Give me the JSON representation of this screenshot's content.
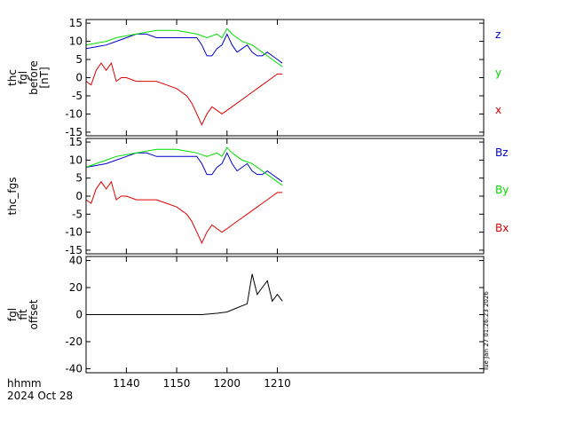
{
  "colors": {
    "x": "#e00000",
    "y": "#00dd00",
    "z": "#0000cc",
    "offset": "#000000",
    "axis": "#000000"
  },
  "footer": {
    "xlabel_line1": "hhmm",
    "xlabel_line2": "2024 Oct 28",
    "timestamp": "Tue Jan 27 01:26:23 2026"
  },
  "chart_data": [
    {
      "type": "line",
      "title": "",
      "ylabel": [
        "thc",
        "fgl",
        "before",
        "[nT]"
      ],
      "ylim": [
        -16,
        16
      ],
      "yticks": [
        15,
        10,
        5,
        0,
        -5,
        -10,
        -15
      ],
      "x_domain_min": [
        1132,
        1211
      ],
      "xticks": [
        "1140",
        "1150",
        "1200",
        "1210"
      ],
      "xtick_positions_min": [
        1140,
        1150,
        1160,
        1170
      ],
      "series": [
        {
          "name": "z",
          "color_key": "z",
          "legend_label": "z",
          "x_min": [
            1132,
            1134,
            1136,
            1138,
            1140,
            1142,
            1144,
            1146,
            1148,
            1150,
            1152,
            1154,
            1155,
            1156,
            1157,
            1158,
            1159,
            1160,
            1161,
            1162,
            1163,
            1164,
            1165,
            1166,
            1167,
            1168,
            1169,
            1170,
            1171
          ],
          "values": [
            8,
            8.5,
            9,
            10,
            11,
            12,
            12,
            11,
            11,
            11,
            11,
            11,
            9,
            6,
            6,
            8,
            9,
            12,
            9,
            7,
            8,
            9,
            7,
            6,
            6,
            7,
            6,
            5,
            4
          ]
        },
        {
          "name": "y",
          "color_key": "y",
          "legend_label": "y",
          "x_min": [
            1132,
            1134,
            1136,
            1138,
            1140,
            1142,
            1144,
            1146,
            1148,
            1150,
            1152,
            1154,
            1156,
            1158,
            1159,
            1160,
            1161,
            1162,
            1163,
            1164,
            1165,
            1166,
            1167,
            1168,
            1169,
            1170,
            1171
          ],
          "values": [
            9,
            9.5,
            10,
            11,
            11.5,
            12,
            12.5,
            13,
            13,
            13,
            12.5,
            12,
            11,
            12,
            11,
            13.5,
            12,
            11,
            10,
            9.5,
            9,
            8,
            7,
            6,
            5,
            4,
            3
          ]
        },
        {
          "name": "x",
          "color_key": "x",
          "legend_label": "x",
          "x_min": [
            1132,
            1133,
            1134,
            1135,
            1136,
            1137,
            1138,
            1139,
            1140,
            1142,
            1144,
            1146,
            1148,
            1150,
            1152,
            1153,
            1154,
            1155,
            1156,
            1157,
            1158,
            1159,
            1160,
            1161,
            1162,
            1163,
            1164,
            1165,
            1166,
            1167,
            1168,
            1169,
            1170,
            1171
          ],
          "values": [
            -1,
            -2,
            2,
            4,
            2,
            4,
            -1,
            0,
            0,
            -1,
            -1,
            -1,
            -2,
            -3,
            -5,
            -7,
            -10,
            -13,
            -10,
            -8,
            -9,
            -10,
            -9,
            -8,
            -7,
            -6,
            -5,
            -4,
            -3,
            -2,
            -1,
            0,
            1,
            1
          ]
        }
      ]
    },
    {
      "type": "line",
      "title": "",
      "ylabel": [
        "thc_fgs"
      ],
      "ylim": [
        -16,
        16
      ],
      "yticks": [
        15,
        10,
        5,
        0,
        -5,
        -10,
        -15
      ],
      "x_domain_min": [
        1132,
        1211
      ],
      "xticks": [
        "1140",
        "1150",
        "1200",
        "1210"
      ],
      "xtick_positions_min": [
        1140,
        1150,
        1160,
        1170
      ],
      "series": [
        {
          "name": "Bz",
          "color_key": "z",
          "legend_label": "Bz",
          "x_min": [
            1132,
            1134,
            1136,
            1138,
            1140,
            1142,
            1144,
            1146,
            1148,
            1150,
            1152,
            1154,
            1155,
            1156,
            1157,
            1158,
            1159,
            1160,
            1161,
            1162,
            1163,
            1164,
            1165,
            1166,
            1167,
            1168,
            1169,
            1170,
            1171
          ],
          "values": [
            8,
            8.5,
            9,
            10,
            11,
            12,
            12,
            11,
            11,
            11,
            11,
            11,
            9,
            6,
            6,
            8,
            9,
            12,
            9,
            7,
            8,
            9,
            7,
            6,
            6,
            7,
            6,
            5,
            4
          ]
        },
        {
          "name": "By",
          "color_key": "y",
          "legend_label": "By",
          "x_min": [
            1132,
            1134,
            1136,
            1138,
            1140,
            1142,
            1144,
            1146,
            1148,
            1150,
            1152,
            1154,
            1156,
            1158,
            1159,
            1160,
            1161,
            1162,
            1163,
            1164,
            1165,
            1166,
            1167,
            1168,
            1169,
            1170,
            1171
          ],
          "values": [
            8,
            9,
            10,
            11,
            11.5,
            12,
            12.5,
            13,
            13,
            13,
            12.5,
            12,
            11,
            12,
            11,
            13.5,
            12,
            11,
            10,
            9.5,
            9,
            8,
            7,
            6,
            5,
            4,
            3
          ]
        },
        {
          "name": "Bx",
          "color_key": "x",
          "legend_label": "Bx",
          "x_min": [
            1132,
            1133,
            1134,
            1135,
            1136,
            1137,
            1138,
            1139,
            1140,
            1142,
            1144,
            1146,
            1148,
            1150,
            1152,
            1153,
            1154,
            1155,
            1156,
            1157,
            1158,
            1159,
            1160,
            1161,
            1162,
            1163,
            1164,
            1165,
            1166,
            1167,
            1168,
            1169,
            1170,
            1171
          ],
          "values": [
            -1,
            -2,
            2,
            4,
            2,
            4,
            -1,
            0,
            0,
            -1,
            -1,
            -1,
            -2,
            -3,
            -5,
            -7,
            -10,
            -13,
            -10,
            -8,
            -9,
            -10,
            -9,
            -8,
            -7,
            -6,
            -5,
            -4,
            -3,
            -2,
            -1,
            0,
            1,
            1
          ]
        }
      ]
    },
    {
      "type": "line",
      "title": "",
      "ylabel": [
        "fgl",
        "fit",
        "offset"
      ],
      "ylim": [
        -43,
        43
      ],
      "yticks": [
        40,
        20,
        0,
        -20,
        -40
      ],
      "x_domain_min": [
        1132,
        1211
      ],
      "xticks": [
        "1140",
        "1150",
        "1200",
        "1210"
      ],
      "xtick_positions_min": [
        1140,
        1150,
        1160,
        1170
      ],
      "series": [
        {
          "name": "offset",
          "color_key": "offset",
          "legend_label": "",
          "x_min": [
            1132,
            1140,
            1150,
            1155,
            1158,
            1160,
            1162,
            1164,
            1165,
            1166,
            1167,
            1168,
            1169,
            1170,
            1171
          ],
          "values": [
            0,
            0,
            0,
            0,
            1,
            2,
            5,
            8,
            30,
            15,
            20,
            25,
            10,
            15,
            10
          ]
        }
      ]
    }
  ]
}
